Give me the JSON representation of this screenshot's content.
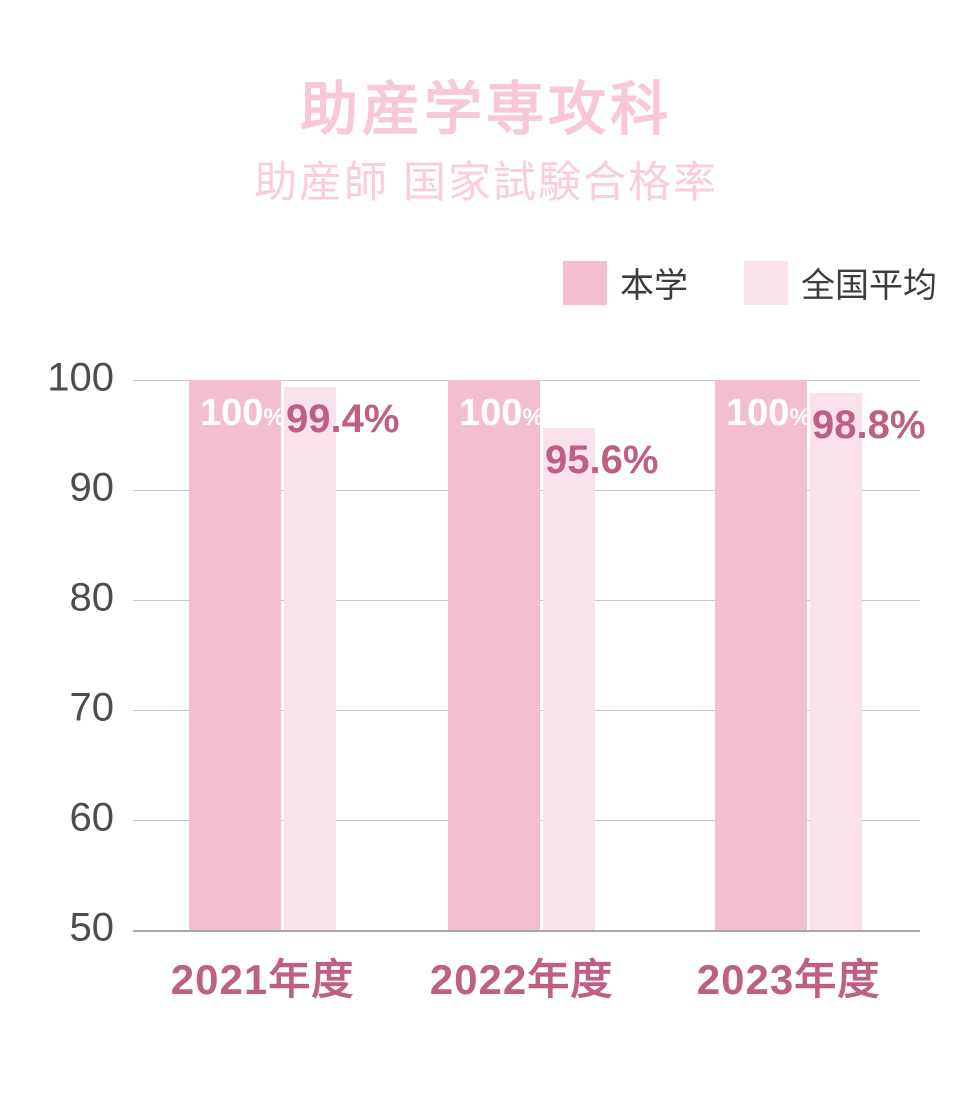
{
  "page": {
    "title": "助産学専攻科",
    "subtitle": "助産師 国家試験合格率"
  },
  "legend": [
    {
      "label": "本学",
      "color": "#F4BED1"
    },
    {
      "label": "全国平均",
      "color": "#FAE1EB"
    }
  ],
  "chart_data": {
    "type": "bar",
    "title": "助産学専攻科",
    "subtitle": "助産師 国家試験合格率",
    "categories": [
      "2021年度",
      "2022年度",
      "2023年度"
    ],
    "series": [
      {
        "name": "本学",
        "color": "#F4BED1",
        "values": [
          100,
          100,
          100
        ],
        "labels": [
          "100%",
          "100%",
          "100%"
        ],
        "label_color": "#ffffff",
        "label_position": "inside-top-left"
      },
      {
        "name": "全国平均",
        "color": "#FAE1EB",
        "values": [
          99.4,
          95.6,
          98.8
        ],
        "labels": [
          "99.4%",
          "95.6%",
          "98.8%"
        ],
        "label_color": "#BE5F84",
        "label_position": "below-top-outside"
      }
    ],
    "ylim": [
      50,
      100
    ],
    "y_ticks": [
      100,
      90,
      80,
      70,
      60,
      50
    ],
    "grid": true,
    "legend_position": "top-right",
    "ylabel": "",
    "xlabel": ""
  },
  "colors": {
    "title_pink": "#F8C8DA",
    "rose_text": "#BE5F84",
    "axis_text": "#4d4d4d",
    "gridline": "#c9c9c9",
    "baseline": "#a8a8a8",
    "background": "#ffffff"
  }
}
